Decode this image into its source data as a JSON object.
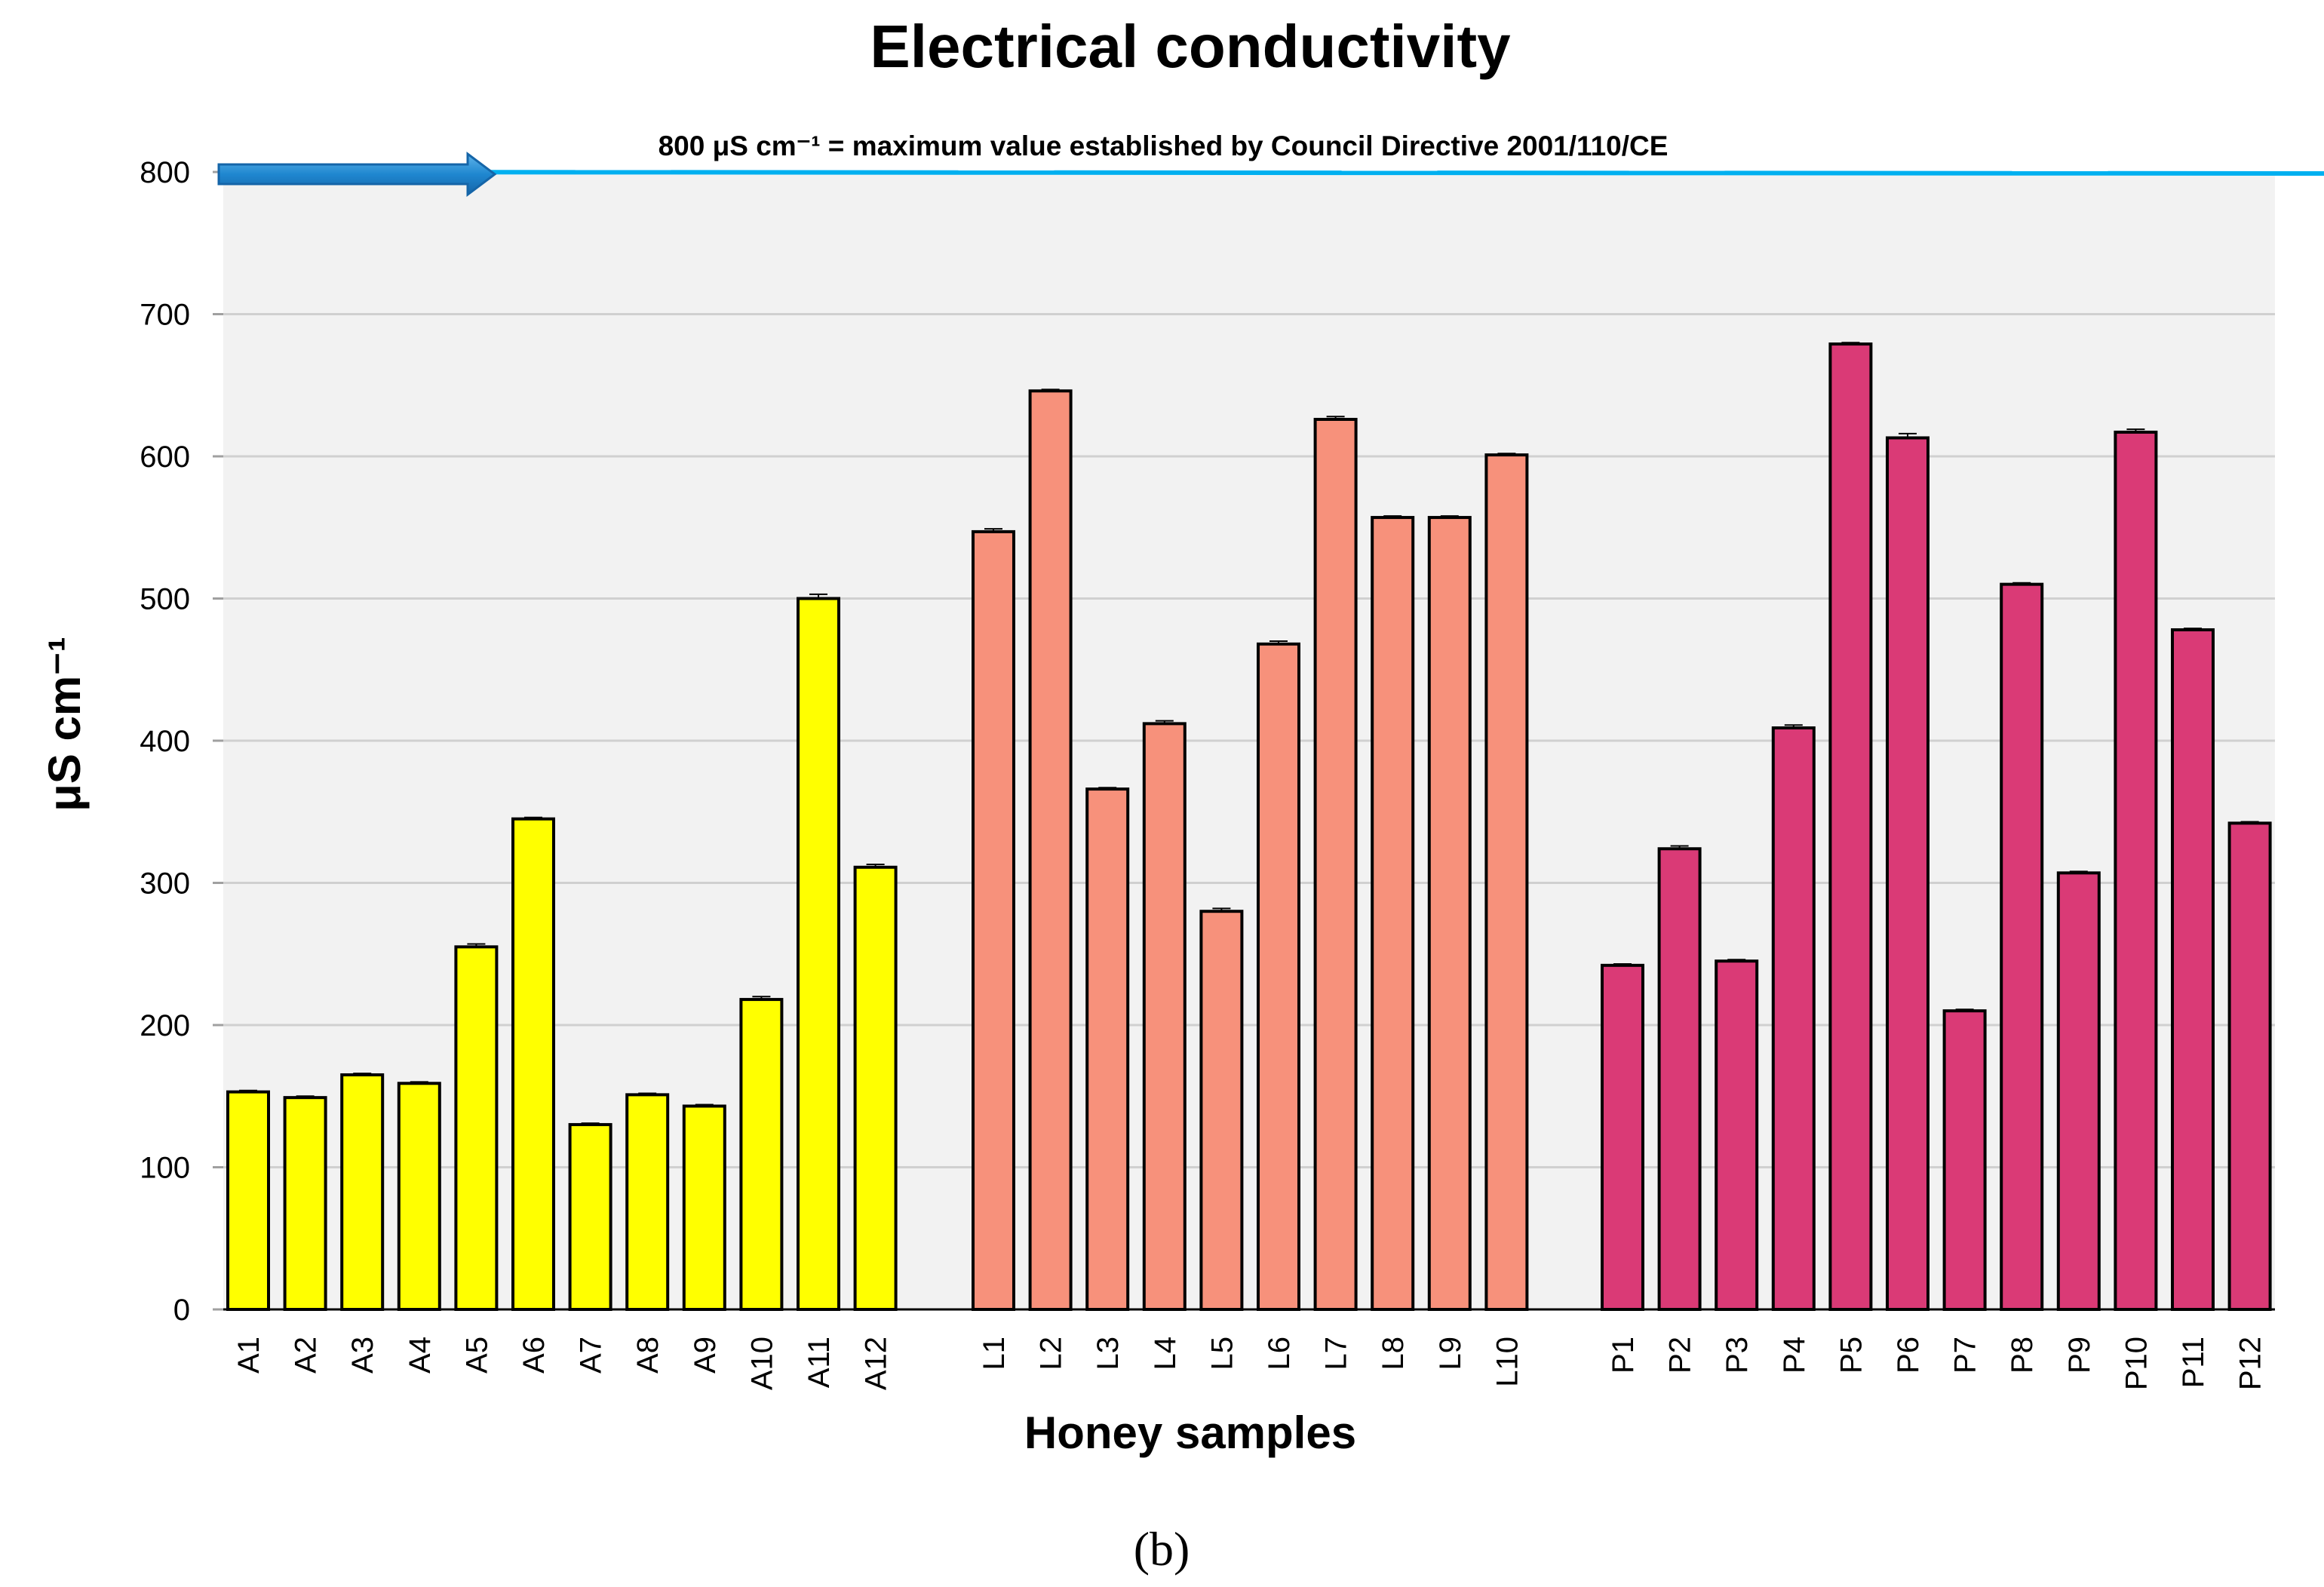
{
  "chart_data": {
    "type": "bar",
    "title": "Electrical conductivity",
    "xlabel": "Honey samples",
    "ylabel": "μS cm⁻¹",
    "ylim": [
      0,
      800
    ],
    "yticks": [
      0,
      100,
      200,
      300,
      400,
      500,
      600,
      700,
      800
    ],
    "grid": true,
    "groups": [
      {
        "name": "A",
        "color": "#ffff00",
        "categories": [
          "A1",
          "A2",
          "A3",
          "A4",
          "A5",
          "A6",
          "A7",
          "A8",
          "A9",
          "A10",
          "A11",
          "A12"
        ],
        "values": [
          153,
          149,
          165,
          159,
          255,
          345,
          130,
          151,
          143,
          218,
          500,
          311
        ],
        "errors": [
          1,
          1,
          1,
          1,
          2,
          1,
          1,
          1,
          1,
          2,
          3,
          2
        ]
      },
      {
        "name": "L",
        "color": "#f7917b",
        "categories": [
          "L1",
          "L2",
          "L3",
          "L4",
          "L5",
          "L6",
          "L7",
          "L8",
          "L9",
          "L10"
        ],
        "values": [
          547,
          646,
          366,
          412,
          280,
          468,
          626,
          557,
          557,
          601
        ],
        "errors": [
          2,
          1,
          1,
          2,
          2,
          2,
          2,
          1,
          1,
          1
        ]
      },
      {
        "name": "P",
        "color": "#da3a76",
        "categories": [
          "P1",
          "P2",
          "P3",
          "P4",
          "P5",
          "P6",
          "P7",
          "P8",
          "P9",
          "P10",
          "P11",
          "P12"
        ],
        "values": [
          242,
          324,
          245,
          409,
          679,
          613,
          210,
          510,
          307,
          617,
          478,
          342
        ],
        "errors": [
          1,
          2,
          1,
          2,
          1,
          3,
          1,
          1,
          1,
          2,
          1,
          1
        ]
      }
    ],
    "reference_line": {
      "value": 800,
      "color": "#00b0f0",
      "annotation": "800 μS cm⁻¹ = maximum value established by Council Directive 2001/110/CE"
    },
    "panel_label": "(b)"
  }
}
